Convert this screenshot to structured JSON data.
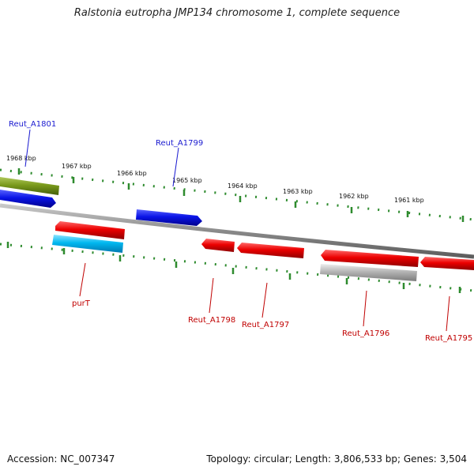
{
  "title": "Ralstonia eutropha JMP134 chromosome 1, complete sequence",
  "footer": {
    "accession": "Accession: NC_007347",
    "stats": "Topology: circular; Length: 3,806,533 bp; Genes: 3,504"
  },
  "ruler_labels": [
    "1968 kbp",
    "1967 kbp",
    "1966 kbp",
    "1965 kbp",
    "1964 kbp",
    "1963 kbp",
    "1962 kbp",
    "1961 kbp"
  ],
  "colors": {
    "backbone": "#8a8a8a",
    "ticks": "#2e8b2e",
    "forward_gene": "#0a14e6",
    "reverse_gene": "#e00000",
    "rna_gene": "#7a9a1c",
    "cyan_gene": "#00b8f0",
    "pseudo_gene": "#b5b5b5",
    "label_blue": "#1a1ad0",
    "label_red": "#c00000"
  },
  "gene_labels": [
    "Reut_A1801",
    "Reut_A1799",
    "purT",
    "Reut_A1798",
    "Reut_A1797",
    "Reut_A1796",
    "Reut_A1795"
  ]
}
